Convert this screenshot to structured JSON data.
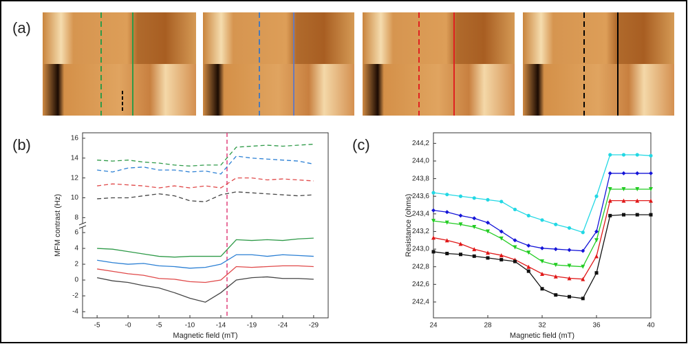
{
  "panel_labels": [
    "(a)",
    "(b)",
    "(c)"
  ],
  "chart_data": [
    {
      "type": "line",
      "x_label": "Magnetic field (mT)",
      "y_label": "MFM contrast (Hz)",
      "x": [
        0,
        0.5,
        1,
        1.5,
        2,
        2.5,
        3,
        3.5,
        4,
        4.5,
        5,
        5.5,
        6,
        6.5,
        7
      ],
      "xlim": [
        -0.47,
        7.47
      ],
      "xticks": [
        {
          "value": 0,
          "label": "-5"
        },
        {
          "value": 1,
          "label": "-0"
        },
        {
          "value": 2,
          "label": "-5"
        },
        {
          "value": 3,
          "label": "-10"
        },
        {
          "value": 4,
          "label": "-14"
        },
        {
          "value": 5,
          "label": "-19"
        },
        {
          "value": 6,
          "label": "-24"
        },
        {
          "value": 7,
          "label": "-29"
        }
      ],
      "ylim": [
        -4.78,
        6.7
      ],
      "yticks": [
        -4,
        -2,
        0,
        2,
        4,
        6
      ],
      "y_upper_lim": [
        7.4,
        16.55
      ],
      "y_upper_ticks": [
        8,
        10,
        12,
        14,
        16
      ],
      "axis_break": true,
      "vline": {
        "x": 4.2,
        "color": "#e0407a"
      },
      "series": [
        {
          "color": "#2e9a48",
          "dashed": true,
          "axis": "upper",
          "values": [
            13.8,
            13.7,
            13.8,
            13.6,
            13.5,
            13.3,
            13.2,
            13.3,
            13.3,
            15.1,
            15.2,
            15.3,
            15.2,
            15.3,
            15.4
          ]
        },
        {
          "color": "#2a7fd4",
          "dashed": true,
          "axis": "upper",
          "values": [
            12.8,
            12.6,
            13.0,
            13.1,
            12.8,
            12.8,
            12.6,
            12.7,
            12.4,
            14.2,
            14.0,
            13.9,
            13.8,
            13.7,
            13.4
          ]
        },
        {
          "color": "#e04848",
          "dashed": true,
          "axis": "upper",
          "values": [
            11.2,
            11.4,
            11.3,
            11.2,
            11.0,
            11.2,
            11.0,
            11.2,
            11.0,
            12.0,
            12.0,
            11.8,
            11.9,
            11.8,
            11.7
          ]
        },
        {
          "color": "#444444",
          "dashed": true,
          "axis": "upper",
          "values": [
            9.9,
            10.0,
            10.0,
            10.2,
            10.4,
            10.2,
            9.7,
            9.6,
            10.3,
            10.6,
            10.5,
            10.4,
            10.3,
            10.2,
            10.3
          ]
        },
        {
          "color": "#2e9a48",
          "values": [
            4.0,
            3.9,
            3.6,
            3.3,
            3.0,
            2.9,
            3.0,
            3.0,
            3.0,
            5.1,
            5.0,
            5.1,
            5.0,
            5.2,
            5.3
          ]
        },
        {
          "color": "#2a7fd4",
          "values": [
            2.5,
            2.2,
            2.0,
            2.1,
            1.8,
            1.7,
            1.5,
            1.6,
            2.0,
            3.2,
            3.2,
            3.0,
            3.2,
            3.1,
            3.0
          ]
        },
        {
          "color": "#e04848",
          "values": [
            1.4,
            1.1,
            0.8,
            0.6,
            0.2,
            0.1,
            -0.2,
            -0.3,
            0.0,
            1.7,
            1.6,
            1.7,
            1.8,
            1.8,
            1.7
          ]
        },
        {
          "color": "#444444",
          "values": [
            0.3,
            -0.1,
            -0.3,
            -0.7,
            -1.0,
            -1.6,
            -2.3,
            -2.8,
            -1.6,
            0.0,
            0.3,
            0.4,
            0.2,
            0.2,
            0.1
          ]
        }
      ]
    },
    {
      "type": "line",
      "x_label": "Magnetic field (mT)",
      "y_label": "Resistance (ohms)",
      "x": [
        24,
        25,
        26,
        27,
        28,
        29,
        30,
        31,
        32,
        33,
        34,
        35,
        36,
        37,
        38,
        39,
        40
      ],
      "xlim": [
        24,
        40
      ],
      "xticks": [
        24,
        28,
        32,
        36,
        40
      ],
      "ylim": [
        242.22,
        244.32
      ],
      "yticks": [
        {
          "value": 242.4,
          "label": "242,4"
        },
        {
          "value": 242.6,
          "label": "242,6"
        },
        {
          "value": 242.8,
          "label": "242,8"
        },
        {
          "value": 243.0,
          "label": "243,0"
        },
        {
          "value": 243.2,
          "label": "243,2"
        },
        {
          "value": 243.4,
          "label": "243,4"
        },
        {
          "value": 243.6,
          "label": "243,6"
        },
        {
          "value": 243.8,
          "label": "243,8"
        },
        {
          "value": 244.0,
          "label": "244,0"
        },
        {
          "value": 244.2,
          "label": "244,2"
        }
      ],
      "series": [
        {
          "color": "#22d8e4",
          "marker": "star",
          "values": [
            243.64,
            243.62,
            243.6,
            243.58,
            243.56,
            243.54,
            243.45,
            243.38,
            243.33,
            243.28,
            243.24,
            243.19,
            243.6,
            244.07,
            244.07,
            244.07,
            244.06
          ]
        },
        {
          "color": "#1414d8",
          "marker": "diamond",
          "values": [
            243.44,
            243.42,
            243.38,
            243.35,
            243.3,
            243.2,
            243.1,
            243.04,
            243.01,
            243.0,
            242.99,
            242.98,
            243.2,
            243.86,
            243.86,
            243.86,
            243.86
          ]
        },
        {
          "color": "#22cc22",
          "marker": "triangle-down",
          "values": [
            243.32,
            243.3,
            243.28,
            243.25,
            243.2,
            243.12,
            243.02,
            242.96,
            242.86,
            242.82,
            242.81,
            242.8,
            243.1,
            243.68,
            243.68,
            243.68,
            243.68
          ]
        },
        {
          "color": "#e01818",
          "marker": "triangle",
          "values": [
            243.13,
            243.1,
            243.06,
            243.0,
            242.96,
            242.93,
            242.88,
            242.8,
            242.72,
            242.69,
            242.67,
            242.66,
            242.92,
            243.55,
            243.55,
            243.55,
            243.55
          ]
        },
        {
          "color": "#111111",
          "marker": "square",
          "values": [
            242.97,
            242.95,
            242.94,
            242.92,
            242.9,
            242.88,
            242.86,
            242.75,
            242.55,
            242.48,
            242.46,
            242.44,
            242.73,
            243.38,
            243.39,
            243.39,
            243.39
          ]
        }
      ]
    }
  ]
}
